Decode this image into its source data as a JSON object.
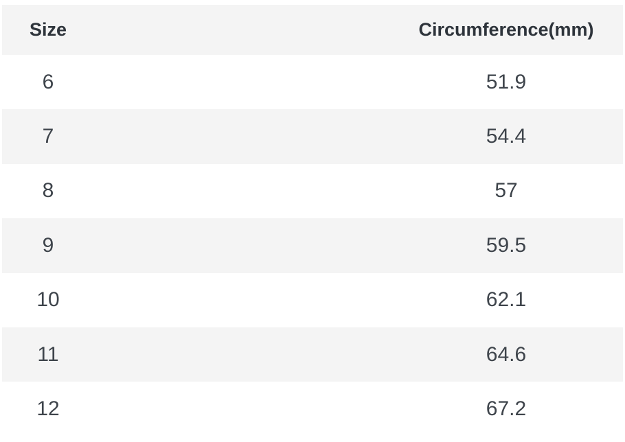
{
  "table": {
    "columns": [
      {
        "key": "size",
        "label": "Size"
      },
      {
        "key": "circumference",
        "label": "Circumference(mm)"
      }
    ],
    "rows": [
      {
        "size": "6",
        "circumference": "51.9"
      },
      {
        "size": "7",
        "circumference": "54.4"
      },
      {
        "size": "8",
        "circumference": "57"
      },
      {
        "size": "9",
        "circumference": "59.5"
      },
      {
        "size": "10",
        "circumference": "62.1"
      },
      {
        "size": "11",
        "circumference": "64.6"
      },
      {
        "size": "12",
        "circumference": "67.2"
      }
    ]
  },
  "colors": {
    "band_bg": "#f4f4f4",
    "row_bg": "#ffffff",
    "header_text": "#2e343b",
    "body_text": "#3e444b"
  },
  "chart_data": {
    "type": "table",
    "columns": [
      "Size",
      "Circumference(mm)"
    ],
    "rows": [
      [
        6,
        51.9
      ],
      [
        7,
        54.4
      ],
      [
        8,
        57
      ],
      [
        9,
        59.5
      ],
      [
        10,
        62.1
      ],
      [
        11,
        64.6
      ],
      [
        12,
        67.2
      ]
    ],
    "layout_hints": {
      "zebra_striping": true,
      "header_background": "#f4f4f4",
      "alt_row_background": "#f4f4f4",
      "column_alignment": [
        "center",
        "center"
      ],
      "grid": false,
      "borders": false
    }
  }
}
